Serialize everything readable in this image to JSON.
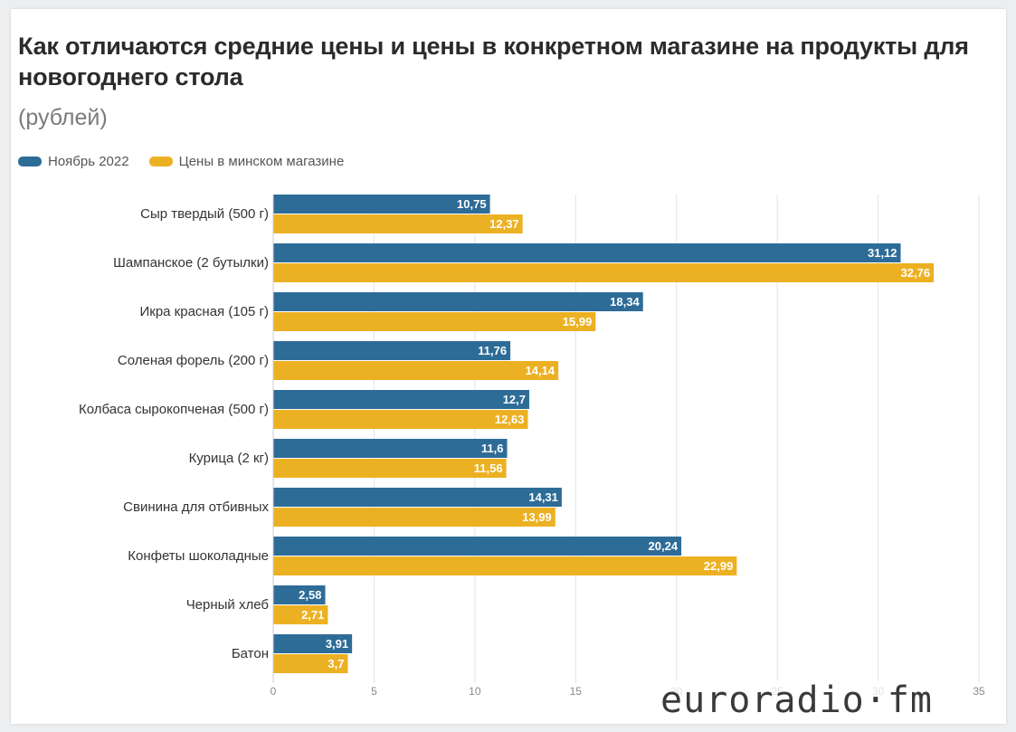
{
  "title": "Как отличаются средние цены и цены в конкретном магазине на продукты для новогоднего стола",
  "subtitle": "(рублей)",
  "watermark": "euroradio·fm",
  "colors": {
    "series1": "#2e6c98",
    "series2": "#ecb123",
    "grid": "#e3e3e3",
    "axis_text": "#8a8a8a",
    "category_text": "#333333"
  },
  "chart_data": {
    "type": "bar",
    "orientation": "horizontal",
    "categories": [
      "Сыр твердый (500 г)",
      "Шампанское (2 бутылки)",
      "Икра красная (105 г)",
      "Соленая форель (200 г)",
      "Колбаса сырокопченая (500 г)",
      "Курица (2 кг)",
      "Свинина для отбивных",
      "Конфеты шоколадные",
      "Черный хлеб",
      "Батон"
    ],
    "series": [
      {
        "name": "Ноябрь 2022",
        "values": [
          10.75,
          31.12,
          18.34,
          11.76,
          12.7,
          11.6,
          14.31,
          20.24,
          2.58,
          3.91
        ],
        "labels": [
          "10,75",
          "31,12",
          "18,34",
          "11,76",
          "12,7",
          "11,6",
          "14,31",
          "20,24",
          "2,58",
          "3,91"
        ]
      },
      {
        "name": "Цены в минском магазине",
        "values": [
          12.37,
          32.76,
          15.99,
          14.14,
          12.63,
          11.56,
          13.99,
          22.99,
          2.71,
          3.7
        ],
        "labels": [
          "12,37",
          "32,76",
          "15,99",
          "14,14",
          "12,63",
          "11,56",
          "13,99",
          "22,99",
          "2,71",
          "3,7"
        ]
      }
    ],
    "xlim": [
      0,
      35
    ],
    "xticks": [
      0,
      5,
      10,
      15,
      20,
      25,
      30,
      35
    ],
    "grid": true,
    "legend": "top-left"
  }
}
